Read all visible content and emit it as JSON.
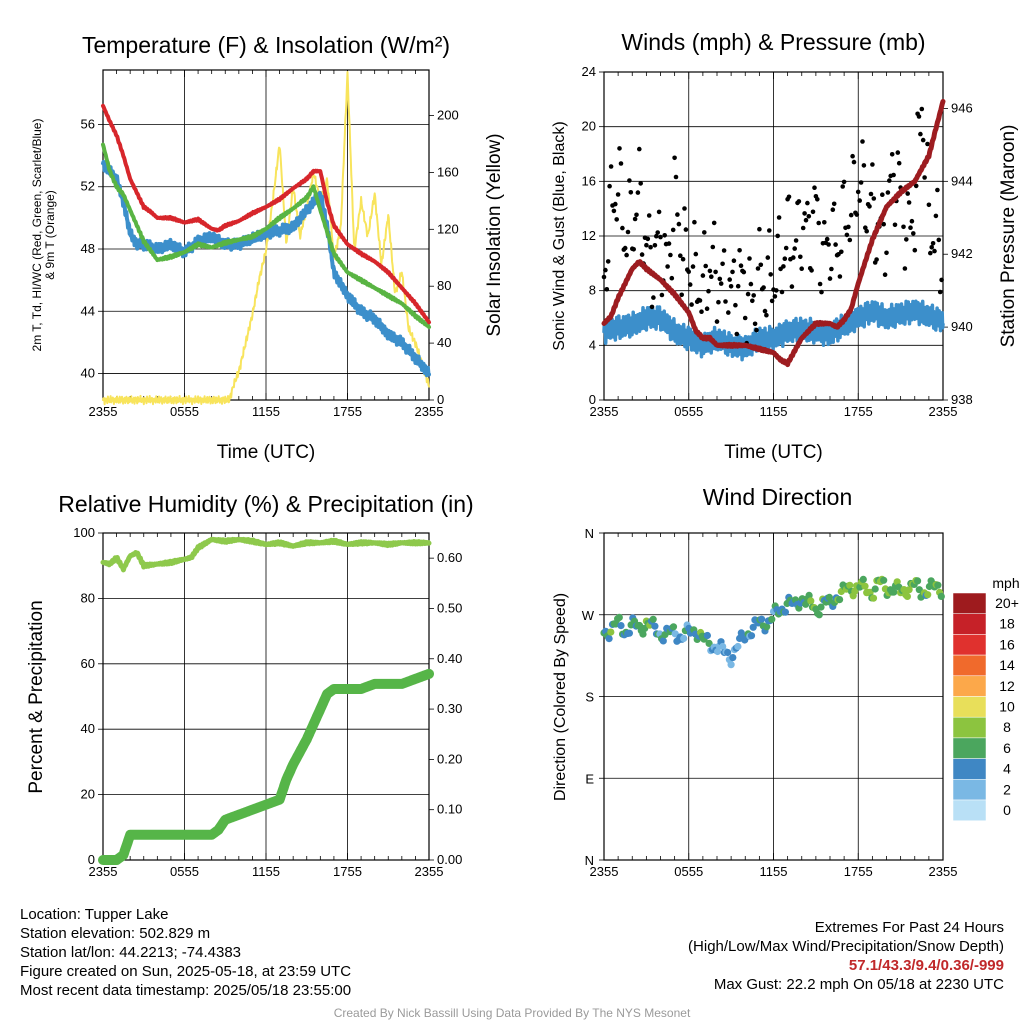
{
  "panels": {
    "temperature": {
      "title": "Temperature (F) & Insolation (W/m²)",
      "ylabel_left": "2m T, Td, HI/WC (Red, Green, Scarlet/Blue) & 9m T (Orange)",
      "ylabel_left_line1": "2m T, Td, HI/WC (Red, Green, Scarlet/Blue)",
      "ylabel_left_line2": "& 9m T (Orange)",
      "ylabel_right": "Solar Insolation (Yellow)",
      "xlabel": "Time (UTC)"
    },
    "winds": {
      "title": "Winds (mph) & Pressure (mb)",
      "ylabel_left": "Sonic Wind & Gust (Blue, Black)",
      "ylabel_right": "Station Pressure (Maroon)",
      "xlabel": "Time (UTC)"
    },
    "humidity": {
      "title": "Relative Humidity (%) & Precipitation (in)",
      "ylabel_left": "Percent & Precipitation"
    },
    "direction": {
      "title": "Wind Direction",
      "ylabel_left": "Direction (Colored By Speed)",
      "colorbar_title": "mph",
      "colorbar_labels": [
        "20+",
        "18",
        "16",
        "14",
        "12",
        "10",
        "8",
        "6",
        "4",
        "2",
        "0"
      ],
      "colorbar_colors": [
        "#9e1b1e",
        "#c62128",
        "#e0312e",
        "#f06a2c",
        "#fca84a",
        "#e8df5a",
        "#8cc43f",
        "#4ba65e",
        "#3f87c4",
        "#7ab8e4",
        "#b9e0f6"
      ]
    }
  },
  "info": {
    "location": "Location: Tupper Lake",
    "elevation": "Station elevation: 502.829 m",
    "latlon": "Station lat/lon: 44.2213; -74.4383",
    "created": "Figure created on Sun, 2025-05-18, at 23:59 UTC",
    "recent": "Most recent data timestamp: 2025/05/18 23:55:00",
    "extremes_title": "Extremes For Past 24 Hours",
    "extremes_subtitle": "(High/Low/Max Wind/Precipitation/Snow Depth)",
    "extremes_values": "57.1/43.3/9.4/0.36/-999",
    "max_gust": "Max Gust: 22.2 mph On 05/18 at 2230 UTC"
  },
  "credit": "Created By Nick Bassill Using Data Provided By The NYS Mesonet",
  "colors": {
    "temp_2m": "#d7262b",
    "temp_9m": "#f0903a",
    "dewpoint": "#59b443",
    "wind_chill": "#3c8fcb",
    "insolation": "#f8e45c",
    "gust": "#000000",
    "pressure": "#9d1c20",
    "rh": "#8ec94c",
    "precip": "#56b548"
  },
  "chart_data": [
    {
      "type": "line",
      "title": "Temperature (F) & Insolation (W/m²)",
      "xlabel": "Time (UTC)",
      "x_ticks": [
        "2355",
        "0555",
        "1155",
        "1755",
        "2355"
      ],
      "x_range_hours": [
        0,
        24
      ],
      "ylim": [
        38.3,
        59.5
      ],
      "y_ticks": [
        40,
        44,
        48,
        52,
        56
      ],
      "y2lim": [
        0,
        232
      ],
      "y2_ticks": [
        0,
        40,
        80,
        120,
        160,
        200
      ],
      "series": [
        {
          "axis": "left",
          "color": "#d7262b",
          "x": [
            0,
            0.5,
            1,
            1.5,
            2,
            2.5,
            3,
            3.5,
            4,
            5,
            6,
            7,
            8,
            8.5,
            9,
            10,
            11,
            12,
            13,
            14,
            15,
            15.5,
            16,
            16.5,
            17,
            18,
            19,
            20,
            21,
            22,
            23,
            24
          ],
          "values": [
            57.2,
            56.2,
            55.3,
            54.0,
            52.5,
            51.6,
            50.7,
            50.4,
            50.0,
            50.0,
            49.7,
            49.9,
            49.3,
            49.2,
            49.5,
            49.8,
            50.3,
            50.7,
            51.2,
            51.9,
            52.5,
            53.0,
            53.0,
            51.0,
            49.5,
            48.3,
            47.7,
            47.2,
            46.5,
            45.5,
            44.5,
            43.3
          ]
        },
        {
          "axis": "left",
          "color": "#59b443",
          "x": [
            0,
            0.5,
            1,
            1.5,
            2,
            3,
            4,
            5,
            6,
            7,
            8,
            9,
            10,
            11,
            12,
            13,
            14,
            15,
            15.5,
            16,
            17,
            18,
            19,
            20,
            21,
            22,
            23,
            24
          ],
          "values": [
            54.7,
            53.0,
            52.0,
            51.5,
            50.5,
            48.5,
            47.3,
            47.5,
            47.8,
            48.3,
            48.1,
            48.4,
            48.6,
            48.8,
            49.3,
            50.0,
            50.6,
            51.3,
            52.0,
            50.5,
            47.7,
            46.5,
            46.0,
            45.5,
            45.0,
            44.5,
            43.7,
            43.0
          ]
        },
        {
          "axis": "left",
          "color": "#3c8fcb",
          "x": [
            0,
            0.5,
            1,
            1.5,
            2,
            2.5,
            3,
            4,
            5,
            6,
            7,
            8,
            9,
            10,
            11,
            12,
            13,
            14,
            15,
            16,
            16.5,
            17,
            18,
            19,
            20,
            21,
            22,
            23,
            24
          ],
          "values": [
            53.5,
            53.0,
            52.5,
            51.0,
            49.0,
            48.3,
            48.3,
            48.0,
            48.3,
            47.8,
            48.5,
            48.8,
            48.3,
            48.3,
            48.7,
            49.0,
            49.2,
            49.4,
            50.5,
            51.5,
            49.5,
            46.5,
            45.0,
            44.0,
            43.5,
            42.5,
            42.0,
            41.0,
            40.0
          ]
        },
        {
          "axis": "right",
          "color": "#f8e45c",
          "x": [
            0,
            9.3,
            9.6,
            10,
            10.5,
            11,
            11.5,
            12,
            12.5,
            13,
            13.5,
            14,
            14.5,
            15,
            15.5,
            16,
            16.5,
            17,
            17.5,
            18,
            18.5,
            19,
            19.5,
            20,
            20.5,
            21,
            21.5,
            22,
            22.5,
            23,
            23.5,
            24
          ],
          "values": [
            0,
            0,
            10,
            20,
            40,
            60,
            85,
            105,
            140,
            180,
            110,
            150,
            115,
            135,
            160,
            140,
            155,
            100,
            120,
            230,
            105,
            140,
            115,
            145,
            95,
            130,
            75,
            90,
            50,
            40,
            25,
            10
          ]
        }
      ]
    },
    {
      "type": "line",
      "title": "Winds (mph) & Pressure (mb)",
      "xlabel": "Time (UTC)",
      "x_ticks": [
        "2355",
        "0555",
        "1155",
        "1755",
        "2355"
      ],
      "x_range_hours": [
        0,
        24
      ],
      "ylim": [
        0,
        24
      ],
      "y_ticks": [
        0,
        4,
        8,
        12,
        16,
        20,
        24
      ],
      "y2lim": [
        938,
        947
      ],
      "y2_ticks": [
        938,
        940,
        942,
        944,
        946
      ],
      "series": [
        {
          "axis": "left",
          "color": "#3c8fcb",
          "x": [
            0,
            1,
            2,
            3,
            4,
            5,
            6,
            7,
            8,
            9,
            10,
            11,
            12,
            13,
            14,
            15,
            16,
            17,
            18,
            19,
            20,
            21,
            22,
            23,
            24
          ],
          "values": [
            5.0,
            5.3,
            5.5,
            6.0,
            6.0,
            5.0,
            4.5,
            4.0,
            4.5,
            4.0,
            3.8,
            4.5,
            4.5,
            5.0,
            5.2,
            5.0,
            4.8,
            5.5,
            6.0,
            6.5,
            6.0,
            6.3,
            6.5,
            6.2,
            5.7
          ]
        },
        {
          "axis": "left",
          "color": "#000000",
          "kind": "scatter",
          "x": [
            0,
            0.5,
            1,
            1.5,
            2,
            2.5,
            3,
            3.5,
            4,
            4.5,
            5,
            5.5,
            6,
            6.5,
            7,
            7.5,
            8,
            8.5,
            9,
            9.5,
            10,
            10.5,
            11,
            11.5,
            12,
            12.5,
            13,
            13.5,
            14,
            14.5,
            15,
            15.5,
            16,
            16.5,
            17,
            17.5,
            18,
            18.5,
            19,
            19.5,
            20,
            20.5,
            21,
            21.5,
            22,
            22.5,
            23,
            23.5,
            24
          ],
          "values": [
            9,
            14,
            16,
            12,
            13,
            15,
            11,
            10,
            12,
            9,
            15,
            11,
            10,
            9,
            8,
            10,
            9,
            8,
            7.5,
            9,
            8,
            7,
            9,
            8.5,
            9,
            10,
            12,
            11,
            13,
            12,
            14,
            10,
            12,
            11,
            13,
            14,
            16,
            15,
            14,
            12,
            13,
            17,
            15,
            12,
            14,
            22.2,
            13,
            12,
            10
          ]
        },
        {
          "axis": "right",
          "color": "#9d1c20",
          "x": [
            0,
            0.5,
            1,
            1.5,
            2,
            2.5,
            3,
            4,
            5,
            6,
            6.5,
            7,
            7.5,
            8,
            9,
            10,
            11,
            12,
            12.5,
            13,
            14,
            15,
            16,
            16.5,
            17,
            17.5,
            18,
            19,
            20,
            21,
            22,
            23,
            24
          ],
          "values": [
            940.1,
            940.3,
            940.8,
            941.2,
            941.6,
            941.8,
            941.6,
            941.3,
            940.9,
            940.4,
            939.9,
            939.7,
            939.7,
            939.5,
            939.5,
            939.5,
            939.4,
            939.3,
            939.1,
            939.0,
            939.7,
            940.1,
            940.1,
            940.0,
            940.2,
            940.5,
            941.2,
            942.4,
            943.3,
            943.7,
            944.0,
            944.7,
            946.2
          ]
        }
      ]
    },
    {
      "type": "line",
      "title": "Relative Humidity (%) & Precipitation (in)",
      "x_ticks": [
        "2355",
        "0555",
        "1155",
        "1755",
        "2355"
      ],
      "x_range_hours": [
        0,
        24
      ],
      "ylim": [
        0,
        100
      ],
      "y_ticks": [
        0,
        20,
        40,
        60,
        80,
        100
      ],
      "y2lim": [
        0,
        0.65
      ],
      "y2_ticks": [
        0.0,
        0.1,
        0.2,
        0.3,
        0.4,
        0.5,
        0.6
      ],
      "series": [
        {
          "axis": "left",
          "color": "#8ec94c",
          "x": [
            0,
            0.5,
            1,
            1.5,
            2,
            2.5,
            3,
            4,
            5,
            6,
            6.5,
            7,
            8,
            9,
            10,
            11,
            12,
            13,
            14,
            15,
            16,
            17,
            18,
            19,
            20,
            21,
            22,
            23,
            24
          ],
          "values": [
            91.0,
            90.5,
            92.5,
            89.0,
            93.0,
            94.0,
            90.0,
            90.5,
            91.0,
            92.0,
            92.5,
            95.5,
            98.0,
            97.5,
            98.0,
            97.5,
            96.5,
            97.0,
            96.0,
            97.0,
            97.0,
            97.5,
            96.5,
            97.0,
            97.0,
            96.5,
            97.0,
            97.0,
            97.0
          ]
        },
        {
          "axis": "right",
          "color": "#56b548",
          "x": [
            0,
            1,
            1.5,
            2,
            3,
            5,
            7,
            8,
            8.5,
            9,
            10,
            11,
            12,
            13,
            13.5,
            14,
            15,
            16,
            16.5,
            17,
            18,
            19,
            20,
            21,
            22,
            23,
            24
          ],
          "values": [
            0.0,
            0.0,
            0.01,
            0.05,
            0.05,
            0.05,
            0.05,
            0.05,
            0.06,
            0.08,
            0.09,
            0.1,
            0.11,
            0.12,
            0.16,
            0.19,
            0.24,
            0.3,
            0.33,
            0.34,
            0.34,
            0.34,
            0.35,
            0.35,
            0.35,
            0.36,
            0.37
          ]
        }
      ]
    },
    {
      "type": "scatter",
      "title": "Wind Direction",
      "x_ticks": [
        "2355",
        "0555",
        "1155",
        "1755",
        "2355"
      ],
      "x_range_hours": [
        0,
        24
      ],
      "y_range_degrees": [
        0,
        360
      ],
      "y_ticks": [
        "N",
        "E",
        "S",
        "W",
        "N"
      ],
      "colorbar_units": "mph",
      "series": [
        {
          "name": "direction",
          "x": [
            0,
            0.5,
            1,
            1.5,
            2,
            2.5,
            3,
            3.5,
            4,
            4.5,
            5,
            5.5,
            6,
            6.5,
            7,
            7.5,
            8,
            8.5,
            9,
            9.5,
            10,
            10.5,
            11,
            11.5,
            12,
            12.5,
            13,
            13.5,
            14,
            14.5,
            15,
            15.5,
            16,
            16.5,
            17,
            17.5,
            18,
            18.5,
            19,
            19.5,
            20,
            20.5,
            21,
            21.5,
            22,
            22.5,
            23,
            23.5,
            24
          ],
          "values": [
            250,
            255,
            260,
            252,
            258,
            255,
            262,
            255,
            250,
            248,
            252,
            245,
            250,
            255,
            242,
            238,
            235,
            228,
            225,
            235,
            248,
            255,
            260,
            262,
            268,
            275,
            285,
            278,
            290,
            282,
            275,
            285,
            280,
            292,
            295,
            300,
            302,
            298,
            295,
            305,
            300,
            298,
            295,
            300,
            302,
            295,
            298,
            300,
            300
          ],
          "speed": [
            5,
            6,
            6,
            5,
            5,
            6,
            7,
            5,
            4,
            5,
            4,
            4,
            4,
            5,
            7,
            4,
            3,
            2,
            3,
            3,
            4,
            4,
            5,
            5,
            4,
            5,
            4,
            5,
            4,
            6,
            7,
            6,
            5,
            6,
            7,
            8,
            7,
            8,
            6,
            7,
            8,
            6,
            7,
            8,
            7,
            6,
            6,
            7,
            6
          ]
        }
      ]
    }
  ]
}
